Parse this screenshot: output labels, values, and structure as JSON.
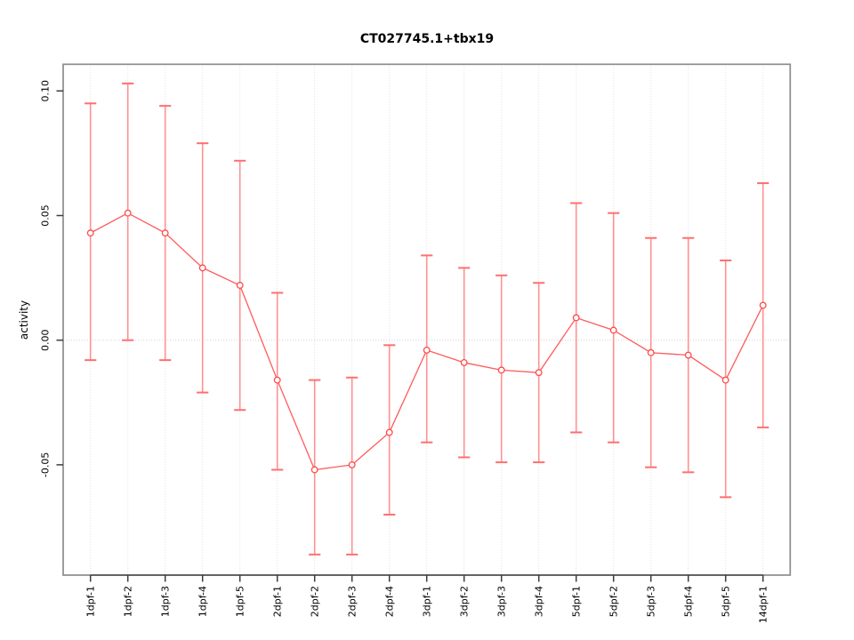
{
  "chart_data": {
    "type": "line",
    "title": "CT027745.1+tbx19",
    "xlabel": "",
    "ylabel": "activity",
    "ylim": [
      -0.094,
      0.112
    ],
    "grid": "vertical-dotted-per-category",
    "zero_reference_line": 0.0,
    "yticks": [
      {
        "value": 0.1,
        "label": "0.10"
      },
      {
        "value": 0.05,
        "label": "0.05"
      },
      {
        "value": 0.0,
        "label": "0.00"
      },
      {
        "value": -0.05,
        "label": "-0.05"
      }
    ],
    "categories": [
      "1dpf-1",
      "1dpf-2",
      "1dpf-3",
      "1dpf-4",
      "1dpf-5",
      "2dpf-1",
      "2dpf-2",
      "2dpf-3",
      "2dpf-4",
      "3dpf-1",
      "3dpf-2",
      "3dpf-3",
      "3dpf-4",
      "5dpf-1",
      "5dpf-2",
      "5dpf-3",
      "5dpf-4",
      "5dpf-5",
      "14dpf-1"
    ],
    "series": [
      {
        "name": "activity",
        "marker": "open-circle",
        "values": [
          0.043,
          0.051,
          0.043,
          0.029,
          0.022,
          -0.016,
          -0.052,
          -0.05,
          -0.037,
          -0.004,
          -0.009,
          -0.012,
          -0.013,
          0.009,
          0.004,
          -0.005,
          -0.006,
          -0.016,
          0.014
        ],
        "error_low": [
          -0.008,
          0.0,
          -0.008,
          -0.021,
          -0.028,
          -0.052,
          -0.086,
          -0.086,
          -0.07,
          -0.041,
          -0.047,
          -0.049,
          -0.049,
          -0.037,
          -0.041,
          -0.051,
          -0.053,
          -0.063,
          -0.035
        ],
        "error_high": [
          0.095,
          0.103,
          0.094,
          0.079,
          0.072,
          0.019,
          -0.016,
          -0.015,
          -0.002,
          0.034,
          0.029,
          0.026,
          0.023,
          0.055,
          0.051,
          0.041,
          0.041,
          0.032,
          0.063
        ]
      }
    ],
    "colors": {
      "series_line": "#ff5a5a",
      "marker_stroke": "#ff4a4a",
      "marker_fill": "#ffffff",
      "errorbar_line": "#ff9191",
      "errorbar_cap": "#ff6f6f",
      "gridline": "#dedede",
      "zero_line": "#d2d2d2",
      "plot_border": "#8c8c8c",
      "axis_line": "#5a5a5a",
      "tick_mark": "#3c3c3c",
      "text": "#000000"
    },
    "legend": "none"
  }
}
